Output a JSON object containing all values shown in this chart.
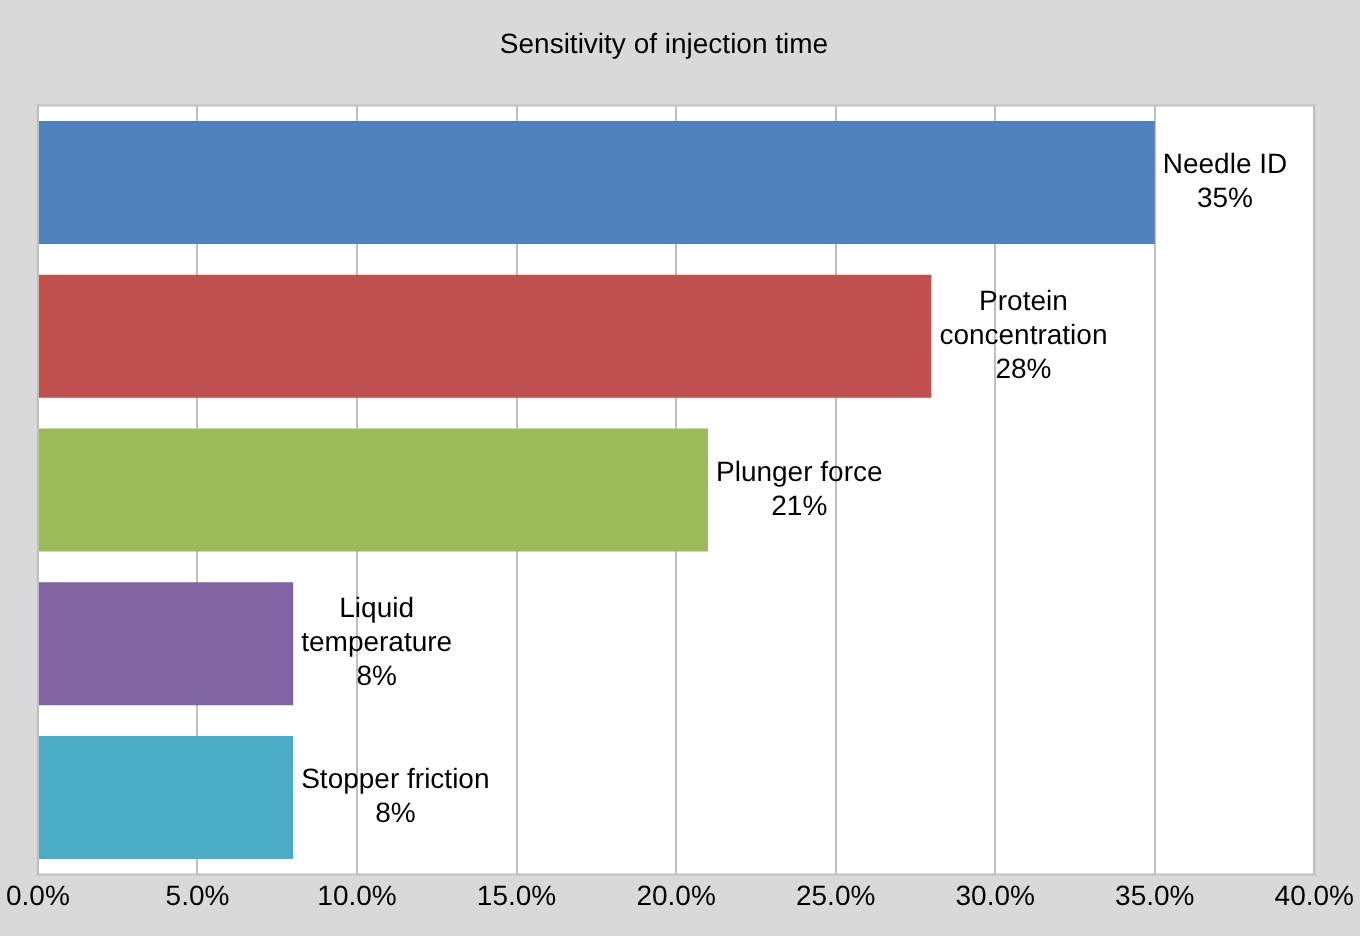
{
  "chart_data": {
    "type": "bar",
    "orientation": "horizontal",
    "title": "Sensitivity of injection time",
    "categories": [
      "Needle ID",
      "Protein concentration",
      "Plunger force",
      "Liquid temperature",
      "Stopper friction"
    ],
    "values": [
      35,
      28,
      21,
      8,
      8
    ],
    "colors": [
      "#4f81bd",
      "#c0504d",
      "#9bbb59",
      "#8064a2",
      "#4bacc6"
    ],
    "value_labels": [
      "35%",
      "28%",
      "21%",
      "8%",
      "8%"
    ],
    "xlim": [
      0,
      40
    ],
    "xticks": [
      {
        "value": 0,
        "label": "0.0%"
      },
      {
        "value": 5,
        "label": "5.0%"
      },
      {
        "value": 10,
        "label": "10.0%"
      },
      {
        "value": 15,
        "label": "15.0%"
      },
      {
        "value": 20,
        "label": "20.0%"
      },
      {
        "value": 25,
        "label": "25.0%"
      },
      {
        "value": 30,
        "label": "30.0%"
      },
      {
        "value": 35,
        "label": "35.0%"
      },
      {
        "value": 40,
        "label": "40.0%"
      }
    ],
    "grid": "x",
    "legend": false,
    "tick_labels": "x"
  }
}
